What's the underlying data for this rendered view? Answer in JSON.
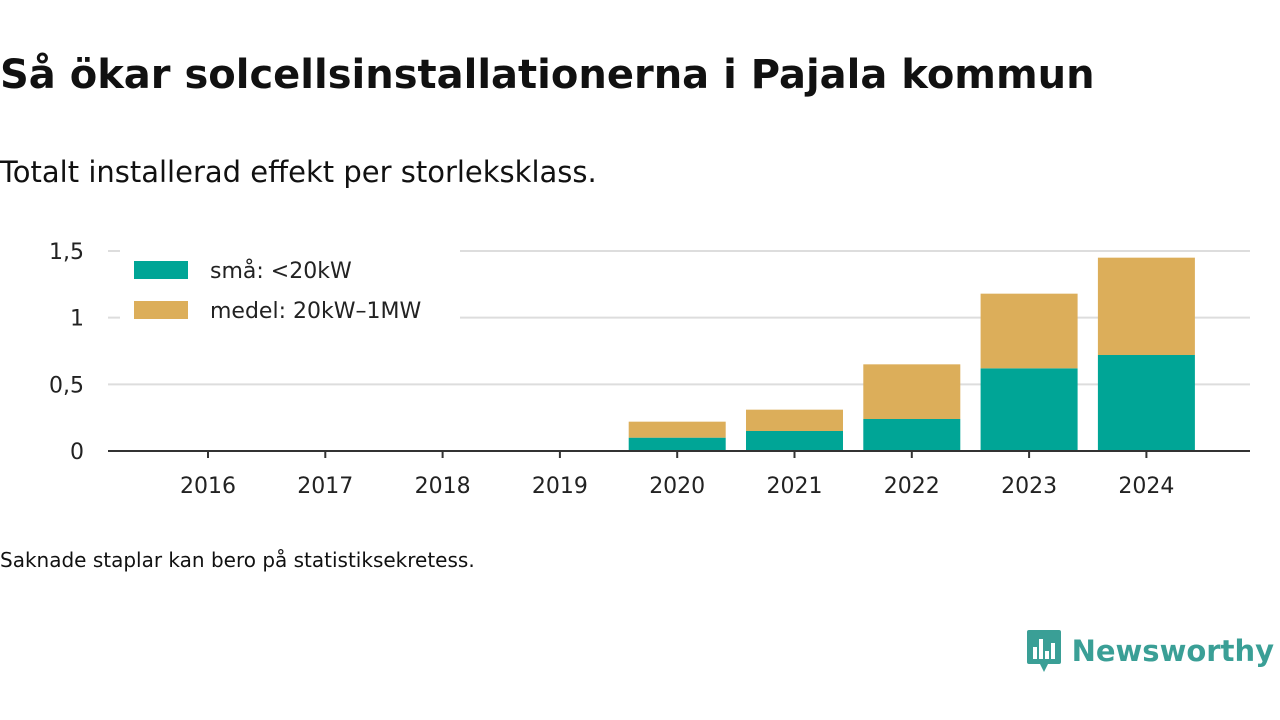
{
  "header": {
    "title": "Så ökar solcellsinstallationerna i Pajala kommun",
    "subtitle": "Totalt installerad effekt per storleksklass."
  },
  "footer": {
    "note": "Saknade staplar kan bero på statistiksekretess.",
    "brand": "Newsworthy",
    "brand_color": "#3a9f96"
  },
  "chart_data": {
    "type": "bar",
    "stacked": true,
    "categories": [
      "2016",
      "2017",
      "2018",
      "2019",
      "2020",
      "2021",
      "2022",
      "2023",
      "2024"
    ],
    "series": [
      {
        "name": "små: <20kW",
        "color": "#00a596",
        "values": [
          0,
          0,
          0,
          0,
          0.1,
          0.15,
          0.24,
          0.62,
          0.72
        ]
      },
      {
        "name": "medel: 20kW–1MW",
        "color": "#dcae5a",
        "values": [
          0,
          0,
          0,
          0,
          0.12,
          0.16,
          0.41,
          0.56,
          0.73
        ]
      }
    ],
    "ylim": [
      0,
      1.5
    ],
    "yticks": [
      0,
      0.5,
      1,
      1.5
    ],
    "ytick_labels": [
      "0",
      "0,5",
      "1",
      "1,5"
    ],
    "grid": true,
    "legend": "top-left"
  }
}
